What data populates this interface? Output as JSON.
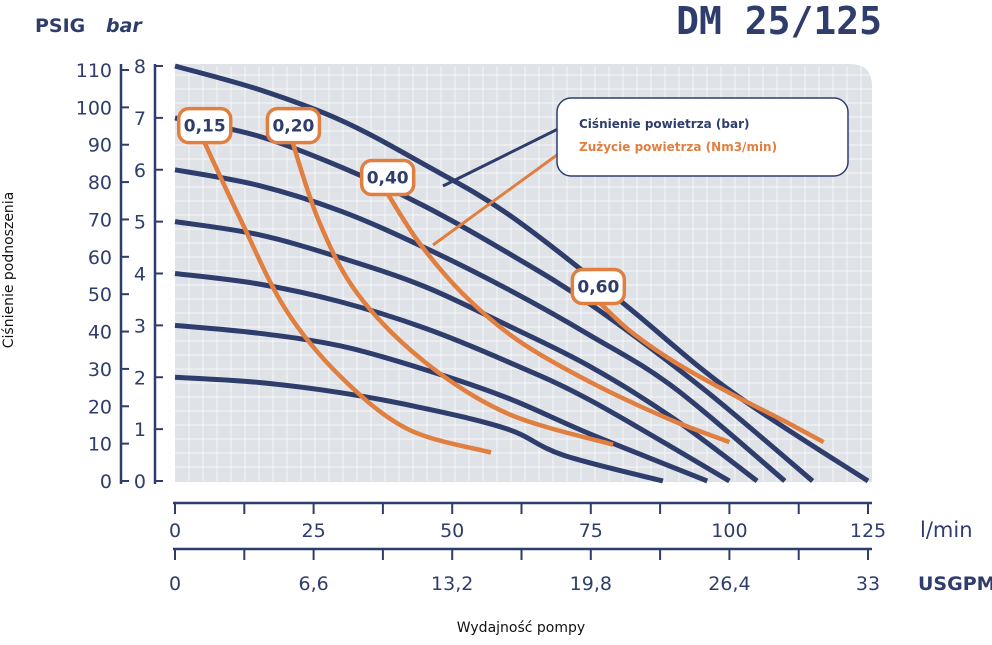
{
  "chart_data": {
    "type": "line",
    "title": "DM 25/125",
    "ylabel": "Ciśnienie podnoszenia",
    "xlabel": "Wydajność pompy",
    "y_units": {
      "psig": "PSIG",
      "bar": "bar"
    },
    "x_units": {
      "lpm": "l/min",
      "usgpm": "USGPM"
    },
    "bar_ticks": [
      "0",
      "1",
      "2",
      "3",
      "4",
      "5",
      "6",
      "7",
      "8"
    ],
    "psig_ticks": [
      "0",
      "10",
      "20",
      "30",
      "40",
      "50",
      "60",
      "70",
      "80",
      "90",
      "100",
      "110"
    ],
    "lpm_ticks": [
      "0",
      "25",
      "50",
      "75",
      "100",
      "125"
    ],
    "usgpm_ticks": [
      "0",
      "6,6",
      "13,2",
      "19,8",
      "26,4",
      "33"
    ],
    "xlim": [
      0,
      125
    ],
    "ylim_bar": [
      0,
      8
    ],
    "grid": true,
    "legend": {
      "position": "top-right",
      "pressure_label": "Ciśnienie powietrza (bar)",
      "consumption_label": "Zużycie powietrza (Nm3/min)"
    },
    "pressure_curves": [
      {
        "points": [
          [
            0,
            2.0
          ],
          [
            15,
            1.9
          ],
          [
            30,
            1.7
          ],
          [
            45,
            1.4
          ],
          [
            60,
            1.0
          ],
          [
            70,
            0.5
          ],
          [
            88,
            0.0
          ]
        ]
      },
      {
        "points": [
          [
            0,
            3.0
          ],
          [
            15,
            2.85
          ],
          [
            30,
            2.6
          ],
          [
            45,
            2.15
          ],
          [
            60,
            1.6
          ],
          [
            75,
            0.9
          ],
          [
            96,
            0.0
          ]
        ]
      },
      {
        "points": [
          [
            0,
            4.0
          ],
          [
            15,
            3.8
          ],
          [
            30,
            3.45
          ],
          [
            45,
            2.95
          ],
          [
            60,
            2.3
          ],
          [
            75,
            1.55
          ],
          [
            100,
            0.0
          ]
        ]
      },
      {
        "points": [
          [
            0,
            5.0
          ],
          [
            15,
            4.75
          ],
          [
            30,
            4.3
          ],
          [
            45,
            3.75
          ],
          [
            60,
            3.0
          ],
          [
            75,
            2.2
          ],
          [
            90,
            1.2
          ],
          [
            105,
            0.0
          ]
        ]
      },
      {
        "points": [
          [
            0,
            6.0
          ],
          [
            15,
            5.7
          ],
          [
            30,
            5.2
          ],
          [
            45,
            4.5
          ],
          [
            60,
            3.7
          ],
          [
            75,
            2.8
          ],
          [
            90,
            1.8
          ],
          [
            110,
            0.0
          ]
        ]
      },
      {
        "points": [
          [
            0,
            7.0
          ],
          [
            15,
            6.65
          ],
          [
            30,
            6.05
          ],
          [
            45,
            5.3
          ],
          [
            60,
            4.4
          ],
          [
            75,
            3.4
          ],
          [
            95,
            1.8
          ],
          [
            115,
            0.0
          ]
        ]
      },
      {
        "points": [
          [
            0,
            8.0
          ],
          [
            15,
            7.55
          ],
          [
            30,
            6.95
          ],
          [
            45,
            6.1
          ],
          [
            60,
            5.15
          ],
          [
            80,
            3.5
          ],
          [
            100,
            1.75
          ],
          [
            125,
            0.0
          ]
        ]
      }
    ],
    "consumption_curves": [
      {
        "label": "0,15",
        "points": [
          [
            5,
            6.6
          ],
          [
            12,
            5.0
          ],
          [
            20,
            3.3
          ],
          [
            30,
            2.0
          ],
          [
            42,
            1.0
          ],
          [
            57,
            0.55
          ]
        ]
      },
      {
        "label": "0,20",
        "points": [
          [
            21,
            6.6
          ],
          [
            26,
            5.0
          ],
          [
            33,
            3.6
          ],
          [
            45,
            2.3
          ],
          [
            60,
            1.3
          ],
          [
            79,
            0.7
          ]
        ]
      },
      {
        "label": "0,40",
        "points": [
          [
            38,
            5.6
          ],
          [
            44,
            4.6
          ],
          [
            52,
            3.6
          ],
          [
            62,
            2.7
          ],
          [
            75,
            1.9
          ],
          [
            89,
            1.2
          ],
          [
            100,
            0.75
          ]
        ]
      },
      {
        "label": "0,60",
        "points": [
          [
            76,
            3.5
          ],
          [
            82,
            2.9
          ],
          [
            90,
            2.3
          ],
          [
            100,
            1.7
          ],
          [
            110,
            1.15
          ],
          [
            117,
            0.75
          ]
        ]
      }
    ],
    "colors": {
      "pressure": "#2e3d6b",
      "consumption": "#e07f3f",
      "plot_bg": "#dfe3e8",
      "grid": "#ffffff"
    }
  }
}
